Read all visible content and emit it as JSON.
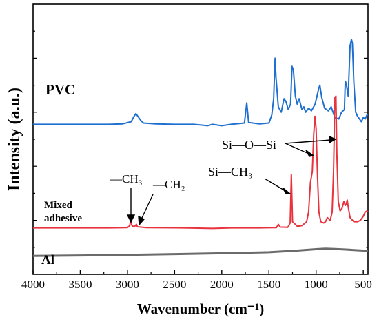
{
  "chart_data": {
    "type": "line",
    "xlabel": "Wavenumber (cm⁻¹)",
    "ylabel": "Intensity (a.u.)",
    "xlim": [
      4000,
      450
    ],
    "x_reversed": true,
    "ylim": [
      0,
      10
    ],
    "xticks": [
      "4000",
      "3500",
      "3000",
      "2500",
      "2000",
      "1500",
      "1000",
      "500"
    ],
    "xtick_values": [
      4000,
      3500,
      3000,
      2500,
      2000,
      1500,
      1000,
      500
    ],
    "grid": false,
    "series": [
      {
        "name": "PVC",
        "color": "#1f6fd1",
        "points": [
          [
            4000,
            5.55
          ],
          [
            3600,
            5.55
          ],
          [
            3200,
            5.55
          ],
          [
            3050,
            5.57
          ],
          [
            2960,
            5.65
          ],
          [
            2930,
            5.85
          ],
          [
            2910,
            5.95
          ],
          [
            2890,
            5.85
          ],
          [
            2860,
            5.7
          ],
          [
            2830,
            5.6
          ],
          [
            2700,
            5.57
          ],
          [
            2500,
            5.55
          ],
          [
            2300,
            5.55
          ],
          [
            2200,
            5.52
          ],
          [
            2150,
            5.5
          ],
          [
            2100,
            5.55
          ],
          [
            2000,
            5.5
          ],
          [
            1900,
            5.55
          ],
          [
            1760,
            5.6
          ],
          [
            1735,
            6.35
          ],
          [
            1715,
            5.62
          ],
          [
            1600,
            5.57
          ],
          [
            1500,
            5.6
          ],
          [
            1470,
            5.9
          ],
          [
            1450,
            6.5
          ],
          [
            1435,
            8.0
          ],
          [
            1425,
            7.3
          ],
          [
            1400,
            6.2
          ],
          [
            1370,
            6.0
          ],
          [
            1340,
            6.5
          ],
          [
            1320,
            6.4
          ],
          [
            1295,
            6.1
          ],
          [
            1270,
            6.3
          ],
          [
            1255,
            7.7
          ],
          [
            1240,
            7.55
          ],
          [
            1220,
            6.6
          ],
          [
            1200,
            6.3
          ],
          [
            1180,
            6.5
          ],
          [
            1150,
            6.1
          ],
          [
            1130,
            6.2
          ],
          [
            1110,
            6.0
          ],
          [
            1080,
            6.15
          ],
          [
            1050,
            6.05
          ],
          [
            1010,
            6.3
          ],
          [
            970,
            6.9
          ],
          [
            960,
            7.0
          ],
          [
            940,
            6.55
          ],
          [
            910,
            6.15
          ],
          [
            870,
            6.05
          ],
          [
            840,
            6.2
          ],
          [
            820,
            6.0
          ],
          [
            800,
            5.8
          ],
          [
            760,
            5.75
          ],
          [
            730,
            6.0
          ],
          [
            700,
            6.1
          ],
          [
            690,
            7.15
          ],
          [
            680,
            7.05
          ],
          [
            660,
            6.6
          ],
          [
            640,
            8.45
          ],
          [
            625,
            8.7
          ],
          [
            615,
            8.55
          ],
          [
            600,
            7.1
          ],
          [
            580,
            6.0
          ],
          [
            560,
            5.85
          ],
          [
            540,
            5.75
          ],
          [
            520,
            5.65
          ],
          [
            500,
            5.8
          ],
          [
            480,
            5.75
          ],
          [
            460,
            5.9
          ],
          [
            450,
            5.9
          ]
        ]
      },
      {
        "name": "Mixed adhesive",
        "color": "#e8333d",
        "points": [
          [
            4000,
            1.72
          ],
          [
            3600,
            1.72
          ],
          [
            3200,
            1.72
          ],
          [
            3000,
            1.73
          ],
          [
            2975,
            1.8
          ],
          [
            2963,
            2.1
          ],
          [
            2955,
            1.82
          ],
          [
            2930,
            1.75
          ],
          [
            2905,
            1.85
          ],
          [
            2895,
            1.76
          ],
          [
            2800,
            1.73
          ],
          [
            2400,
            1.72
          ],
          [
            2100,
            1.7
          ],
          [
            1900,
            1.72
          ],
          [
            1600,
            1.72
          ],
          [
            1420,
            1.73
          ],
          [
            1400,
            1.85
          ],
          [
            1380,
            1.75
          ],
          [
            1300,
            1.74
          ],
          [
            1275,
            1.9
          ],
          [
            1262,
            3.7
          ],
          [
            1250,
            1.95
          ],
          [
            1200,
            1.78
          ],
          [
            1150,
            1.8
          ],
          [
            1100,
            1.95
          ],
          [
            1080,
            2.3
          ],
          [
            1060,
            3.4
          ],
          [
            1040,
            3.8
          ],
          [
            1025,
            5.2
          ],
          [
            1012,
            5.85
          ],
          [
            1000,
            5.4
          ],
          [
            985,
            3.6
          ],
          [
            970,
            2.3
          ],
          [
            950,
            1.95
          ],
          [
            920,
            1.9
          ],
          [
            900,
            1.95
          ],
          [
            880,
            2.1
          ],
          [
            865,
            2.05
          ],
          [
            850,
            2.0
          ],
          [
            830,
            2.3
          ],
          [
            815,
            3.8
          ],
          [
            800,
            6.55
          ],
          [
            790,
            6.6
          ],
          [
            780,
            4.5
          ],
          [
            765,
            2.7
          ],
          [
            745,
            2.35
          ],
          [
            725,
            2.45
          ],
          [
            705,
            2.7
          ],
          [
            690,
            2.55
          ],
          [
            680,
            2.6
          ],
          [
            670,
            2.75
          ],
          [
            660,
            2.5
          ],
          [
            640,
            2.1
          ],
          [
            600,
            1.95
          ],
          [
            560,
            1.95
          ],
          [
            530,
            2.0
          ],
          [
            500,
            2.15
          ],
          [
            480,
            2.3
          ],
          [
            460,
            2.35
          ],
          [
            450,
            2.3
          ]
        ]
      },
      {
        "name": "Al",
        "color": "#6b6b6b",
        "points": [
          [
            4000,
            0.68
          ],
          [
            3500,
            0.7
          ],
          [
            3000,
            0.72
          ],
          [
            2500,
            0.75
          ],
          [
            2000,
            0.78
          ],
          [
            1500,
            0.82
          ],
          [
            1200,
            0.88
          ],
          [
            1000,
            0.93
          ],
          [
            900,
            0.95
          ],
          [
            800,
            0.94
          ],
          [
            700,
            0.92
          ],
          [
            600,
            0.9
          ],
          [
            500,
            0.88
          ],
          [
            450,
            0.87
          ]
        ]
      }
    ],
    "annotations": {
      "ch3": "—CH₃",
      "ch2": "—CH₂",
      "sich3": "Si—CH₃",
      "siosi": "Si—O—Si"
    }
  }
}
